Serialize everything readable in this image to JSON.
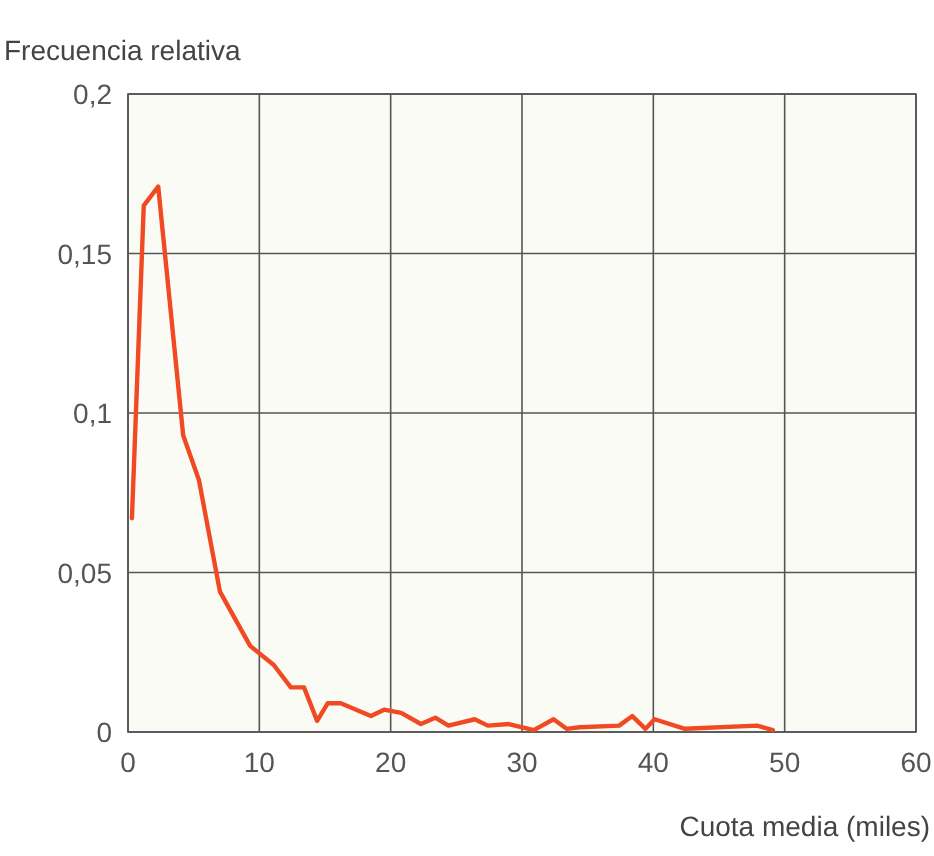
{
  "chart_data": {
    "type": "line",
    "ylabel": "Frecuencia relativa",
    "xlabel": "Cuota media (miles)",
    "x": [
      0.3,
      1.2,
      2.3,
      4.2,
      5.4,
      7.0,
      9.3,
      11.1,
      12.4,
      13.4,
      14.4,
      15.2,
      16.2,
      18.5,
      19.5,
      20.8,
      22.3,
      23.4,
      24.4,
      26.4,
      27.4,
      29,
      30.9,
      32.4,
      33.4,
      34.4,
      37.4,
      38.4,
      39.4,
      40.1,
      42.4,
      47.9,
      49.1
    ],
    "series": [
      {
        "color": "#f04a23",
        "values": [
          0.067,
          0.165,
          0.171,
          0.093,
          0.079,
          0.044,
          0.027,
          0.021,
          0.014,
          0.014,
          0.0035,
          0.009,
          0.009,
          0.005,
          0.007,
          0.006,
          0.0025,
          0.0045,
          0.002,
          0.004,
          0.002,
          0.0025,
          0.0006,
          0.004,
          0.001,
          0.0015,
          0.002,
          0.005,
          0.001,
          0.004,
          0.001,
          0.002,
          0.0006
        ]
      }
    ],
    "xlim": [
      0,
      60
    ],
    "xticks": [
      0,
      10,
      20,
      30,
      40,
      50,
      60
    ],
    "ylim": [
      0,
      0.2
    ],
    "yticks": [
      {
        "value": 0,
        "label": "0"
      },
      {
        "value": 0.05,
        "label": "0,05"
      },
      {
        "value": 0.1,
        "label": "0,1"
      },
      {
        "value": 0.15,
        "label": "0,15"
      },
      {
        "value": 0.2,
        "label": "0,2"
      }
    ],
    "grid": true
  }
}
